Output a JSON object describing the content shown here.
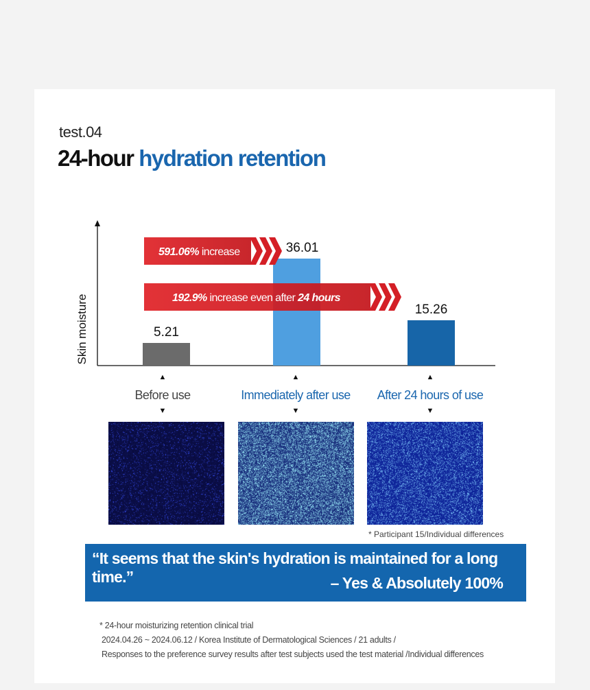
{
  "header": {
    "test_label": "test.04",
    "title_dark": "24-hour",
    "title_blue": "hydration retention"
  },
  "chart_data": {
    "type": "bar",
    "ylabel": "Skin moisture",
    "categories": [
      "Before use",
      "Immediately after use",
      "After 24 hours of use"
    ],
    "values": [
      5.21,
      36.01,
      15.26
    ],
    "value_labels": [
      "5.21",
      "36.01",
      "15.26"
    ],
    "bar_colors": [
      "#6b6b6b",
      "#4f9fe0",
      "#1765a8"
    ],
    "category_colors": [
      "#444444",
      "#1a66ae",
      "#1a66ae"
    ],
    "annotations": [
      {
        "bold": "591.06%",
        "text": " increase",
        "bold2": ""
      },
      {
        "bold": "192.9%",
        "text": " increase even after ",
        "bold2": "24 hours"
      }
    ],
    "annotation_color": "#e02328"
  },
  "images": {
    "note": "* Participant 15/Individual differences"
  },
  "quote": {
    "text": "“It seems that the skin's hydration is maintained for a long time.”",
    "attribution": "– Yes & Absolutely 100%"
  },
  "footnote": [
    "* 24-hour moisturizing retention clinical trial",
    "2024.04.26 ~ 2024.06.12 / Korea Institute of Dermatological Sciences / 21 adults /",
    "Responses to the preference survey results after test subjects used the test material /Individual differences"
  ]
}
